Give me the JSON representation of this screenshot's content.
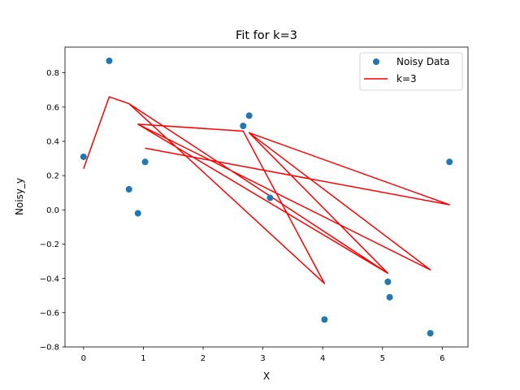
{
  "chart_data": {
    "type": "scatter",
    "title": "Fit for k=3",
    "xlabel": "X",
    "ylabel": "Noisy_y",
    "xlim": [
      -0.31,
      6.43
    ],
    "ylim": [
      -0.8,
      0.95
    ],
    "xticks": [
      0,
      1,
      2,
      3,
      4,
      5,
      6
    ],
    "yticks": [
      -0.8,
      -0.6,
      -0.4,
      -0.2,
      0.0,
      0.2,
      0.4,
      0.6,
      0.8
    ],
    "ytick_labels": [
      "−0.8",
      "−0.6",
      "−0.4",
      "−0.2",
      "0.0",
      "0.2",
      "0.4",
      "0.6",
      "0.8"
    ],
    "grid": false,
    "legend_position": "top-right",
    "series": [
      {
        "name": "Noisy Data",
        "kind": "scatter",
        "color": "#1f77b4",
        "x": [
          0.0,
          0.43,
          0.76,
          0.91,
          1.03,
          2.67,
          2.77,
          3.12,
          4.03,
          5.09,
          5.12,
          5.8,
          6.12
        ],
        "y": [
          0.31,
          0.87,
          0.12,
          -0.02,
          0.28,
          0.49,
          0.55,
          0.07,
          -0.64,
          -0.42,
          -0.51,
          -0.72,
          0.28
        ]
      },
      {
        "name": "k=3",
        "kind": "line",
        "color": "#ff0000",
        "x": [
          0.0,
          0.43,
          0.76,
          5.09,
          0.91,
          2.67,
          4.03,
          0.76,
          5.09,
          2.77,
          5.8,
          0.91,
          5.09,
          2.77,
          6.12,
          1.03
        ],
        "y": [
          0.24,
          0.66,
          0.62,
          -0.37,
          0.5,
          0.46,
          -0.43,
          0.62,
          -0.37,
          0.45,
          -0.35,
          0.5,
          -0.37,
          0.45,
          0.03,
          0.36
        ]
      }
    ]
  }
}
